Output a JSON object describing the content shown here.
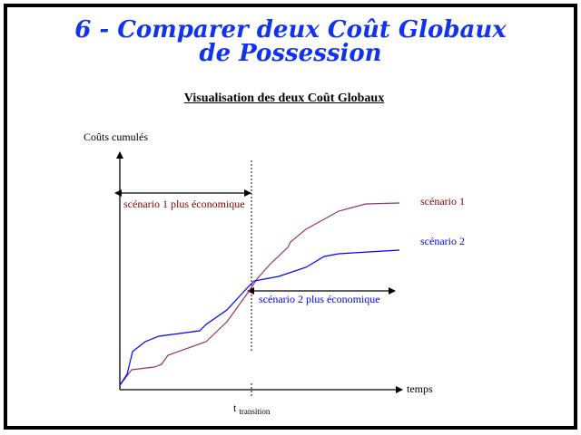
{
  "title": {
    "line1": "6 - Comparer deux Coût Globaux",
    "line2": "de Possession"
  },
  "subtitle": "Visualisation des deux Coût Globaux",
  "diagram": {
    "y_axis_label": "Coûts cumulés",
    "x_axis_label": "temps",
    "transition_label": "t",
    "transition_subscript": "transition",
    "region1_label": "scénario 1 plus économique",
    "region2_label": "scénario 2 plus économique",
    "series": [
      {
        "name": "scénario 1",
        "color": "#993366"
      },
      {
        "name": "scénario 2",
        "color": "#0000ff"
      }
    ],
    "colors": {
      "region1_text": "#800000",
      "region2_text": "#0000ff",
      "title": "#1133ee"
    }
  }
}
